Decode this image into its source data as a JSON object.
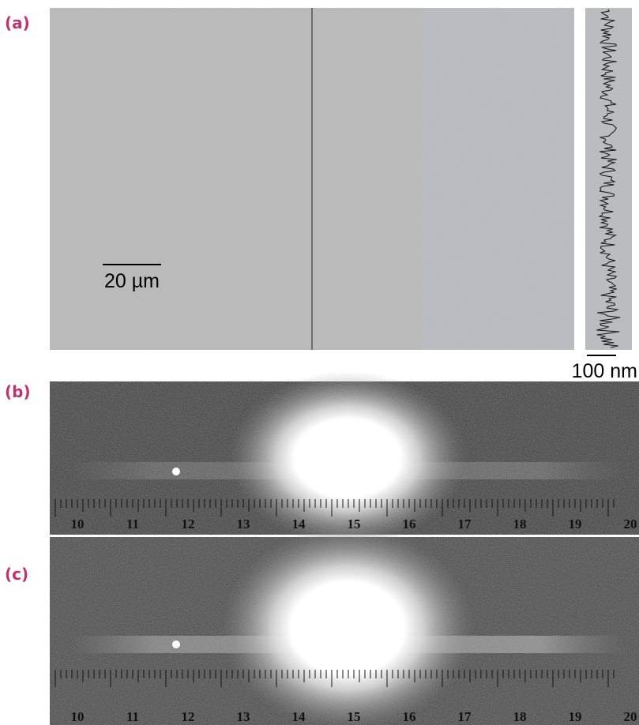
{
  "panels": {
    "a": {
      "label": "(a)",
      "scale_bar": "20 µm",
      "profile_scale_bar": "100 nm"
    },
    "b": {
      "label": "(b)",
      "ruler": [
        "10",
        "11",
        "12",
        "13",
        "14",
        "15",
        "16",
        "17",
        "18",
        "19",
        "20"
      ]
    },
    "c": {
      "label": "(c)",
      "ruler": [
        "10",
        "11",
        "12",
        "13",
        "14",
        "15",
        "16",
        "17",
        "18",
        "19",
        "20"
      ]
    }
  }
}
